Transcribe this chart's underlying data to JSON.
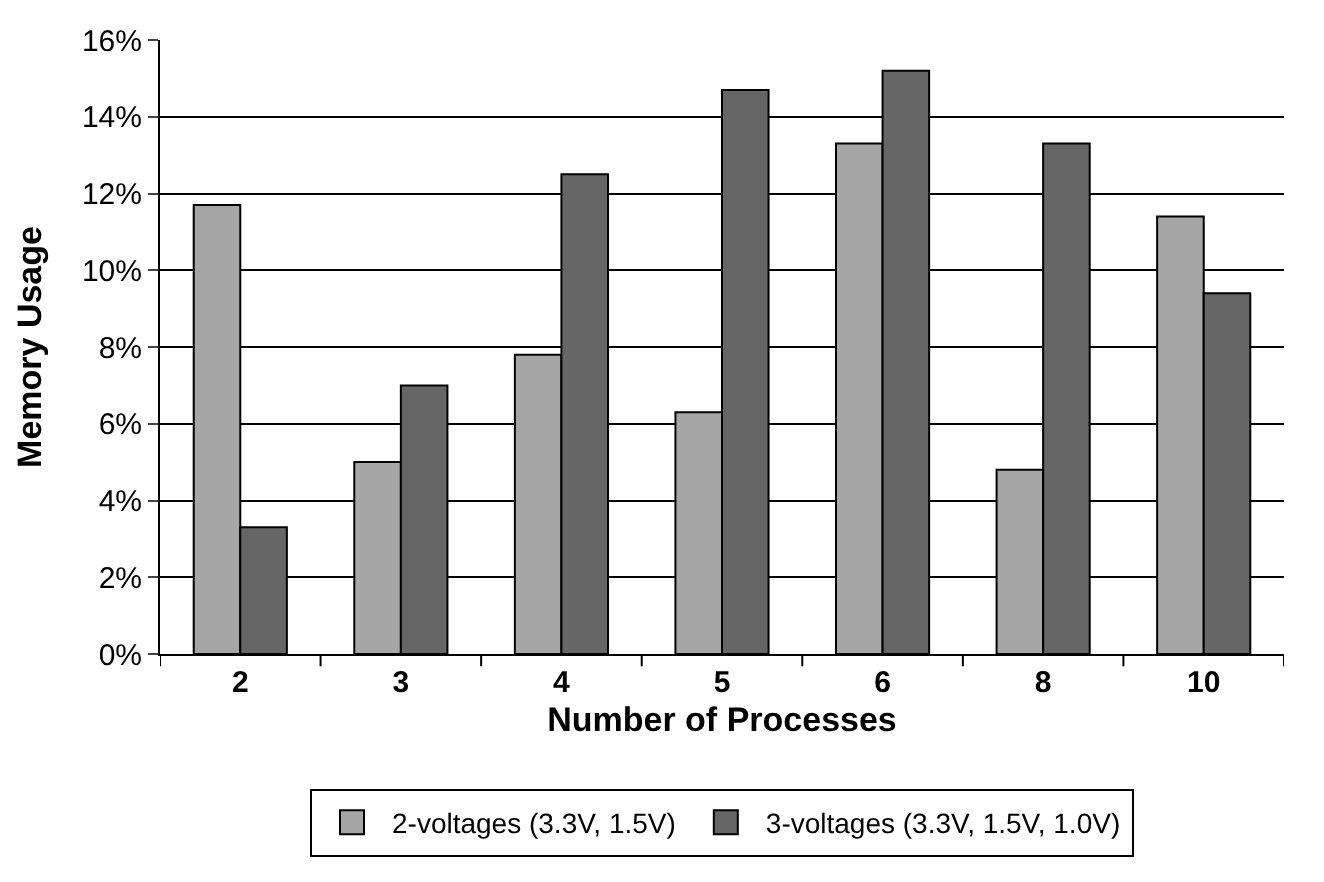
{
  "chart_data": {
    "type": "bar",
    "xlabel": "Number of Processes",
    "ylabel": "Memory Usage",
    "categories": [
      "2",
      "3",
      "4",
      "5",
      "6",
      "8",
      "10"
    ],
    "series": [
      {
        "name": "2-voltages (3.3V, 1.5V)",
        "color": "#a6a6a6",
        "values": [
          11.7,
          5.0,
          7.8,
          6.3,
          13.3,
          4.8,
          11.4
        ]
      },
      {
        "name": "3-voltages (3.3V, 1.5V, 1.0V)",
        "color": "#666666",
        "values": [
          3.3,
          7.0,
          12.5,
          14.7,
          15.2,
          13.3,
          9.4
        ]
      }
    ],
    "ylim": [
      0,
      16
    ],
    "yticks": [
      {
        "value": 0,
        "label": "0%"
      },
      {
        "value": 2,
        "label": "2%"
      },
      {
        "value": 4,
        "label": "4%"
      },
      {
        "value": 6,
        "label": "6%"
      },
      {
        "value": 8,
        "label": "8%"
      },
      {
        "value": 10,
        "label": "10%"
      },
      {
        "value": 12,
        "label": "12%"
      },
      {
        "value": 14,
        "label": "14%"
      },
      {
        "value": 16,
        "label": "16%"
      }
    ],
    "grid": "y",
    "legend": "bottom"
  }
}
